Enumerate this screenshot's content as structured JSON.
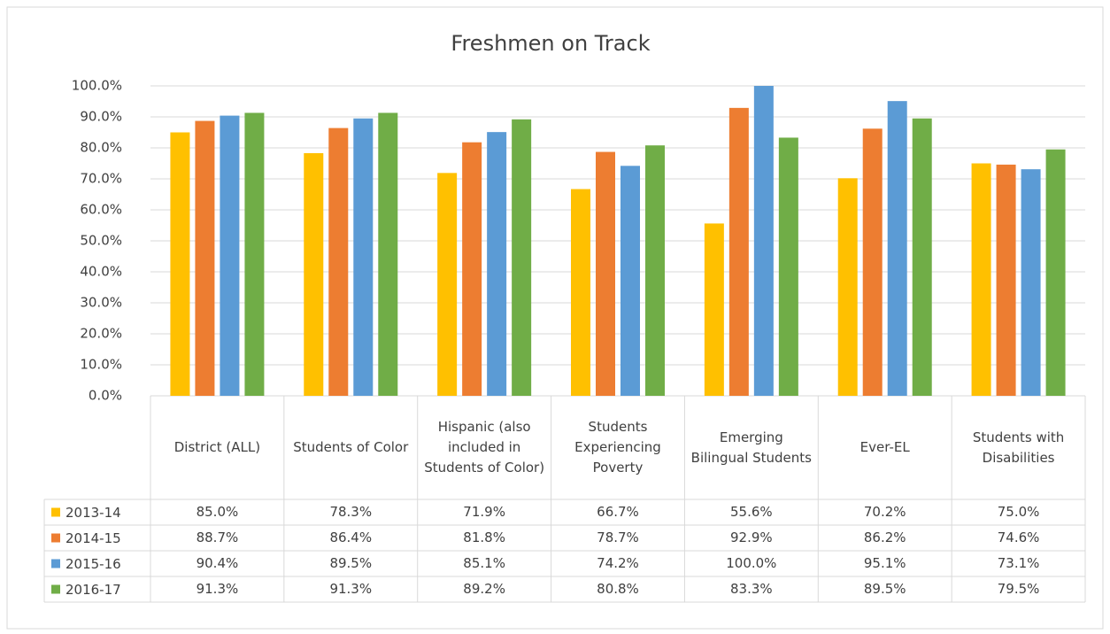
{
  "chart_data": {
    "type": "bar",
    "title": "Freshmen on Track",
    "categories": [
      "District (ALL)",
      "Students of Color",
      "Hispanic (also included in Students of Color)",
      "Students Experiencing Poverty",
      "Emerging Bilingual Students",
      "Ever-EL",
      "Students with Disabilities"
    ],
    "series": [
      {
        "name": "2013-14",
        "color": "#FFC000",
        "values": [
          85.0,
          78.3,
          71.9,
          66.7,
          55.6,
          70.2,
          75.0
        ],
        "value_labels": [
          "85.0%",
          "78.3%",
          "71.9%",
          "66.7%",
          "55.6%",
          "70.2%",
          "75.0%"
        ]
      },
      {
        "name": "2014-15",
        "color": "#ED7D31",
        "values": [
          88.7,
          86.4,
          81.8,
          78.7,
          92.9,
          86.2,
          74.6
        ],
        "value_labels": [
          "88.7%",
          "86.4%",
          "81.8%",
          "78.7%",
          "92.9%",
          "86.2%",
          "74.6%"
        ]
      },
      {
        "name": "2015-16",
        "color": "#5B9BD5",
        "values": [
          90.4,
          89.5,
          85.1,
          74.2,
          100.0,
          95.1,
          73.1
        ],
        "value_labels": [
          "90.4%",
          "89.5%",
          "85.1%",
          "74.2%",
          "100.0%",
          "95.1%",
          "73.1%"
        ]
      },
      {
        "name": "2016-17",
        "color": "#70AD47",
        "values": [
          91.3,
          91.3,
          89.2,
          80.8,
          83.3,
          89.5,
          79.5
        ],
        "value_labels": [
          "91.3%",
          "91.3%",
          "89.2%",
          "80.8%",
          "83.3%",
          "89.5%",
          "79.5%"
        ]
      }
    ],
    "ylim": [
      0,
      100
    ],
    "yticks": [
      {
        "value": 0,
        "label": "0.0%"
      },
      {
        "value": 10,
        "label": "10.0%"
      },
      {
        "value": 20,
        "label": "20.0%"
      },
      {
        "value": 30,
        "label": "30.0%"
      },
      {
        "value": 40,
        "label": "40.0%"
      },
      {
        "value": 50,
        "label": "50.0%"
      },
      {
        "value": 60,
        "label": "60.0%"
      },
      {
        "value": 70,
        "label": "70.0%"
      },
      {
        "value": 80,
        "label": "80.0%"
      },
      {
        "value": 90,
        "label": "90.0%"
      },
      {
        "value": 100,
        "label": "100.0%"
      }
    ],
    "grid": true
  }
}
